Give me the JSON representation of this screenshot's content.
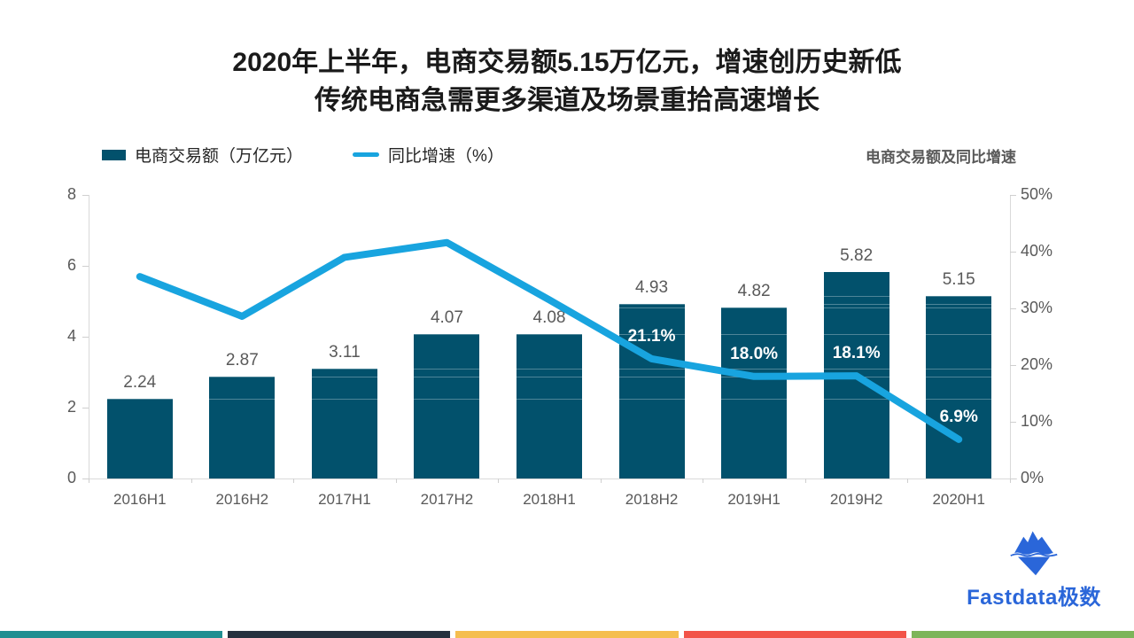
{
  "title": {
    "line1": "2020年上半年，电商交易额5.15万亿元，增速创历史新低",
    "line2": "传统电商急需更多渠道及场景重拾高速增长"
  },
  "legend": {
    "bar_label": "电商交易额（万亿元）",
    "line_label": "同比增速（%）"
  },
  "chart_subtitle": "电商交易额及同比增速",
  "colors": {
    "bar": "#02516c",
    "line": "#18a4df",
    "axis": "#d9d9d9",
    "tick_text": "#595959",
    "title_text": "#1a1a1a",
    "logo_blue": "#2a66d9"
  },
  "chart_data": {
    "type": "bar",
    "subtype": "bar+line combo, dual axis",
    "title": "电商交易额及同比增速",
    "categories": [
      "2016H1",
      "2016H2",
      "2017H1",
      "2017H2",
      "2018H1",
      "2018H2",
      "2019H1",
      "2019H2",
      "2020H1"
    ],
    "series": [
      {
        "name": "电商交易额（万亿元）",
        "type": "bar",
        "axis": "left",
        "values": [
          2.24,
          2.87,
          3.11,
          4.07,
          4.08,
          4.93,
          4.82,
          5.82,
          5.15
        ],
        "data_labels": [
          "2.24",
          "2.87",
          "3.11",
          "4.07",
          "4.08",
          "4.93",
          "4.82",
          "5.82",
          "5.15"
        ]
      },
      {
        "name": "同比增速（%）",
        "type": "line",
        "axis": "right",
        "values": [
          35.6,
          28.6,
          39.0,
          41.6,
          31.5,
          21.1,
          18.0,
          18.1,
          6.9
        ],
        "point_labels": [
          null,
          null,
          null,
          null,
          null,
          "21.1%",
          "18.0%",
          "18.1%",
          "6.9%"
        ]
      }
    ],
    "left_axis": {
      "min": 0,
      "max": 8,
      "ticks": [
        0,
        2,
        4,
        6,
        8
      ]
    },
    "right_axis": {
      "min": 0,
      "max": 50,
      "ticks": [
        "0%",
        "10%",
        "20%",
        "30%",
        "40%",
        "50%"
      ]
    },
    "grid": false,
    "legend_position": "top-left",
    "overlay_line_values": [
      2.24,
      2.87,
      3.11,
      4.07,
      4.82,
      4.93,
      5.15
    ]
  },
  "logo": {
    "text": "Fastdata极数",
    "icon": "iceberg-icon"
  },
  "footer_colors": [
    "#1f8e91",
    "#25313f",
    "#f5be4f",
    "#f25449",
    "#7db55a"
  ]
}
